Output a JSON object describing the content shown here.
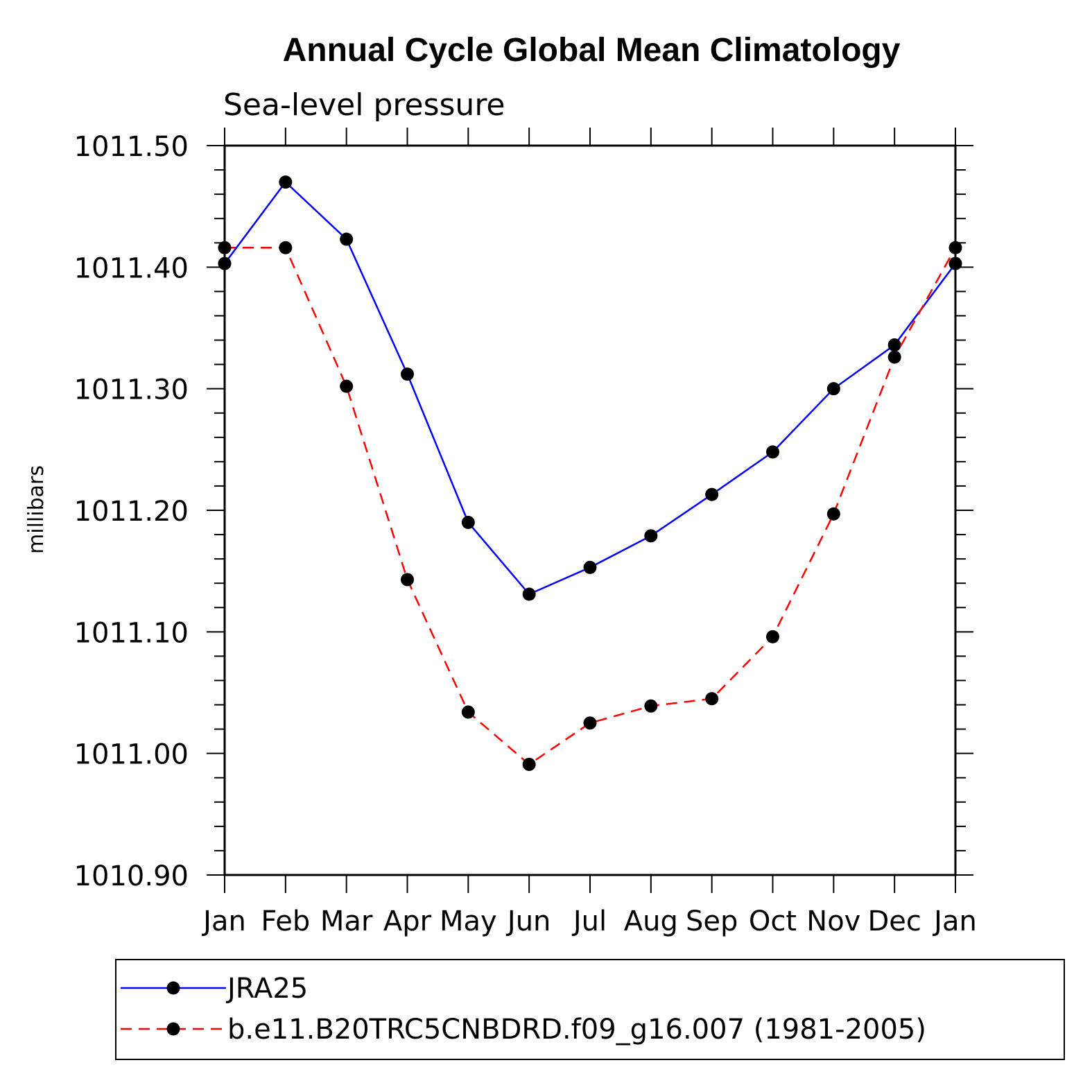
{
  "chart_data": {
    "type": "line",
    "title": "Annual Cycle Global Mean Climatology",
    "subtitle": "Sea-level pressure",
    "ylabel": "millibars",
    "ylim": [
      1010.9,
      1011.5
    ],
    "y_ticks": [
      "1010.90",
      "1011.00",
      "1011.10",
      "1011.20",
      "1011.30",
      "1011.40",
      "1011.50"
    ],
    "categories": [
      "Jan",
      "Feb",
      "Mar",
      "Apr",
      "May",
      "Jun",
      "Jul",
      "Aug",
      "Sep",
      "Oct",
      "Nov",
      "Dec",
      "Jan"
    ],
    "series": [
      {
        "name": "JRA25",
        "color": "#0000ff",
        "dash": "solid",
        "values": [
          1011.403,
          1011.47,
          1011.423,
          1011.312,
          1011.19,
          1011.131,
          1011.153,
          1011.179,
          1011.213,
          1011.248,
          1011.3,
          1011.336,
          1011.403
        ]
      },
      {
        "name": "b.e11.B20TRC5CNBDRD.f09_g16.007 (1981-2005)",
        "color": "#ff0000",
        "dash": "dashed",
        "values": [
          1011.416,
          1011.416,
          1011.302,
          1011.143,
          1011.034,
          1010.991,
          1011.025,
          1011.039,
          1011.045,
          1011.096,
          1011.197,
          1011.326,
          1011.416
        ]
      }
    ],
    "legend": "bottom",
    "grid": false
  }
}
